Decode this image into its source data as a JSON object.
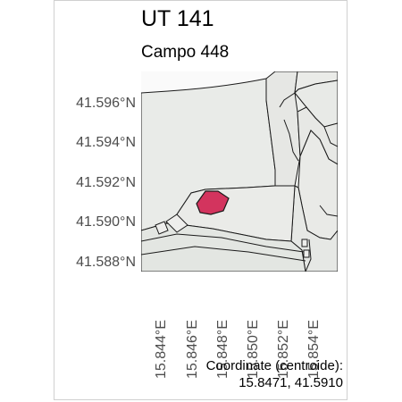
{
  "title": "UT 141",
  "subtitle": "Campo 448",
  "map": {
    "y_ticks": [
      "41.596°N",
      "41.594°N",
      "41.592°N",
      "41.590°N",
      "41.588°N"
    ],
    "x_ticks": [
      "15.844°E",
      "15.846°E",
      "15.848°E",
      "15.850°E",
      "15.852°E",
      "15.854°E"
    ],
    "highlight_color": "#d3345e",
    "parcel_fill": "#e8e9e6",
    "background": "#f2f2f0"
  },
  "footer": {
    "label": "Coordinate (centroide):",
    "value": "15.8471, 41.5910"
  }
}
